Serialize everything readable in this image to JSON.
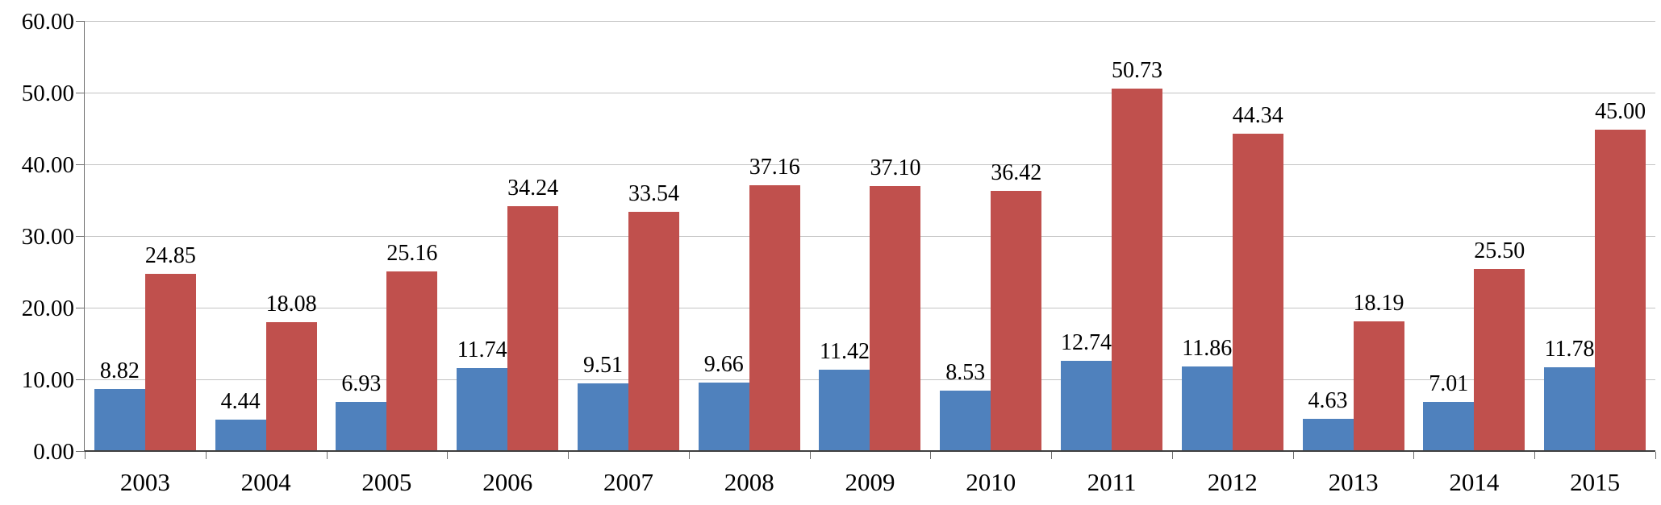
{
  "chart_data": {
    "type": "bar",
    "title": "",
    "xlabel": "",
    "ylabel": "",
    "categories": [
      "2003",
      "2004",
      "2005",
      "2006",
      "2007",
      "2008",
      "2009",
      "2010",
      "2011",
      "2012",
      "2013",
      "2014",
      "2015"
    ],
    "series": [
      {
        "key": "blue",
        "color": "#4f81bd",
        "values": [
          "8.82",
          "4.44",
          "6.93",
          "11.74",
          "9.51",
          "9.66",
          "11.42",
          "8.53",
          "12.74",
          "11.86",
          "4.63",
          "7.01",
          "11.78"
        ]
      },
      {
        "key": "red",
        "color": "#c0504d",
        "values": [
          "24.85",
          "18.08",
          "25.16",
          "34.24",
          "33.54",
          "37.16",
          "37.10",
          "36.42",
          "50.73",
          "44.34",
          "18.19",
          "25.50",
          "45.00"
        ]
      }
    ],
    "ylim": [
      0,
      60
    ],
    "ytick_step": 10,
    "ytick_labels": [
      "0.00",
      "10.00",
      "20.00",
      "30.00",
      "40.00",
      "50.00",
      "60.00"
    ],
    "grid": true,
    "legend": false,
    "data_labels": true
  },
  "style": {
    "background": "#ffffff",
    "grid_color": "#c3c3c3",
    "axis_color": "#6e6e6e",
    "zero_line_color": "#404040",
    "label_color": "#000000"
  }
}
